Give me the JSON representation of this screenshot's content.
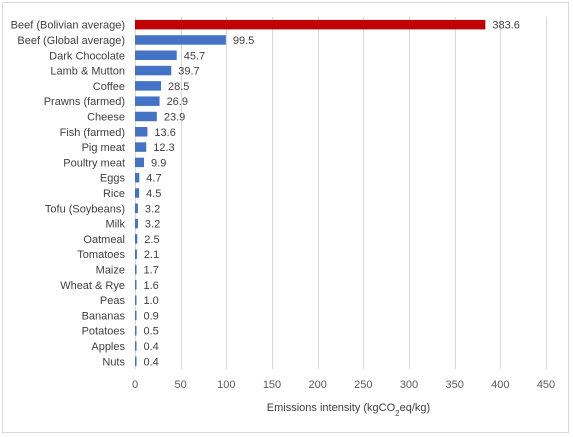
{
  "chart_data": {
    "type": "bar",
    "orientation": "horizontal",
    "categories": [
      "Beef (Bolivian average)",
      "Beef (Global average)",
      "Dark Chocolate",
      "Lamb & Mutton",
      "Coffee",
      "Prawns (farmed)",
      "Cheese",
      "Fish (farmed)",
      "Pig meat",
      "Poultry meat",
      "Eggs",
      "Rice",
      "Tofu (Soybeans)",
      "Milk",
      "Oatmeal",
      "Tomatoes",
      "Maize",
      "Wheat & Rye",
      "Peas",
      "Bananas",
      "Potatoes",
      "Apples",
      "Nuts"
    ],
    "values": [
      383.6,
      99.5,
      45.7,
      39.7,
      28.5,
      26.9,
      23.9,
      13.6,
      12.3,
      9.9,
      4.7,
      4.5,
      3.2,
      3.2,
      2.5,
      2.1,
      1.7,
      1.6,
      1.0,
      0.9,
      0.5,
      0.4,
      0.4
    ],
    "value_labels": [
      "383.6",
      "99.5",
      "45.7",
      "39.7",
      "28.5",
      "26.9",
      "23.9",
      "13.6",
      "12.3",
      "9.9",
      "4.7",
      "4.5",
      "3.2",
      "3.2",
      "2.5",
      "2.1",
      "1.7",
      "1.6",
      "1.0",
      "0.9",
      "0.5",
      "0.4",
      "0.4"
    ],
    "xlim": [
      0,
      450
    ],
    "xticks": [
      0,
      50,
      100,
      150,
      200,
      250,
      300,
      350,
      400,
      450
    ],
    "xlabel_prefix": "Emissions intensity (kgCO",
    "xlabel_sub": "2",
    "xlabel_suffix": "eq/kg)",
    "grid": true,
    "colors": {
      "highlight": "#c00000",
      "default": "#4472c4"
    },
    "highlight_index": 0
  }
}
